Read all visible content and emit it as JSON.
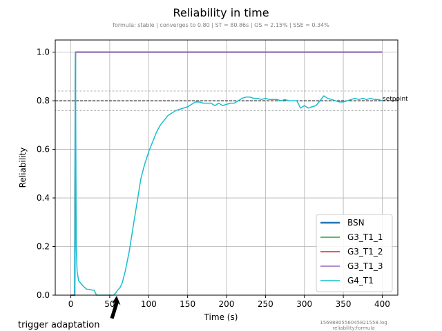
{
  "chart_data": {
    "type": "line",
    "title": "Reliability in time",
    "subtitle": "formula: stable | converges to 0.80 | ST = 80.86s | OS = 2.15% | SSE = 0.34%",
    "xlabel": "Time (s)",
    "ylabel": "Reliability",
    "xlim": [
      -20,
      420
    ],
    "ylim": [
      0.0,
      1.05
    ],
    "x_ticks": [
      "0",
      "50",
      "100",
      "150",
      "200",
      "250",
      "300",
      "350",
      "400"
    ],
    "y_ticks": [
      "0.0",
      "0.2",
      "0.4",
      "0.6",
      "0.8",
      "1.0"
    ],
    "grid": true,
    "legend_position": "bottom-right",
    "setpoint": {
      "label": "setpoint",
      "value": 0.8,
      "upper": 0.84,
      "lower": 0.76
    },
    "annotation": {
      "text": "trigger adaptation",
      "arrow_to_x": 60
    },
    "footer": [
      "1569880556045821558.log",
      "reliability:formula"
    ],
    "series": [
      {
        "name": "BSN",
        "color": "#1f77b4",
        "x": [
          0,
          5,
          6,
          400
        ],
        "y": [
          0.0,
          0.0,
          1.0,
          1.0
        ]
      },
      {
        "name": "G3_T1_1",
        "color": "#2ca02c",
        "x": [
          0,
          5,
          6,
          400
        ],
        "y": [
          0.0,
          0.0,
          1.0,
          1.0
        ]
      },
      {
        "name": "G3_T1_2",
        "color": "#d62728",
        "x": [
          0,
          5,
          6,
          400
        ],
        "y": [
          0.0,
          0.0,
          1.0,
          1.0
        ]
      },
      {
        "name": "G3_T1_3",
        "color": "#9467bd",
        "x": [
          0,
          5,
          6,
          400
        ],
        "y": [
          0.0,
          0.0,
          1.0,
          1.0
        ]
      },
      {
        "name": "G4_T1",
        "color": "#17becf",
        "x": [
          5,
          6,
          7,
          8,
          10,
          15,
          20,
          30,
          33,
          55,
          58,
          60,
          63,
          66,
          70,
          75,
          80,
          85,
          90,
          95,
          100,
          105,
          110,
          115,
          120,
          125,
          130,
          135,
          140,
          150,
          155,
          160,
          165,
          170,
          175,
          180,
          185,
          190,
          195,
          200,
          205,
          210,
          215,
          220,
          225,
          230,
          235,
          240,
          245,
          250,
          255,
          260,
          265,
          270,
          275,
          280,
          285,
          290,
          292,
          295,
          300,
          305,
          310,
          315,
          320,
          325,
          330,
          335,
          340,
          345,
          350,
          355,
          360,
          365,
          370,
          375,
          380,
          385,
          390,
          395,
          400
        ],
        "y": [
          0.0,
          1.0,
          0.2,
          0.1,
          0.06,
          0.04,
          0.025,
          0.02,
          0.0,
          0.0,
          0.01,
          0.02,
          0.03,
          0.05,
          0.1,
          0.18,
          0.28,
          0.38,
          0.48,
          0.54,
          0.59,
          0.63,
          0.67,
          0.7,
          0.72,
          0.74,
          0.75,
          0.76,
          0.765,
          0.775,
          0.785,
          0.795,
          0.795,
          0.79,
          0.79,
          0.79,
          0.78,
          0.79,
          0.78,
          0.785,
          0.79,
          0.79,
          0.8,
          0.81,
          0.815,
          0.815,
          0.81,
          0.81,
          0.805,
          0.81,
          0.805,
          0.805,
          0.805,
          0.8,
          0.805,
          0.8,
          0.8,
          0.8,
          0.79,
          0.77,
          0.78,
          0.77,
          0.775,
          0.78,
          0.8,
          0.82,
          0.81,
          0.805,
          0.8,
          0.795,
          0.795,
          0.8,
          0.805,
          0.81,
          0.805,
          0.81,
          0.805,
          0.81,
          0.805,
          0.805,
          0.8
        ]
      }
    ]
  }
}
